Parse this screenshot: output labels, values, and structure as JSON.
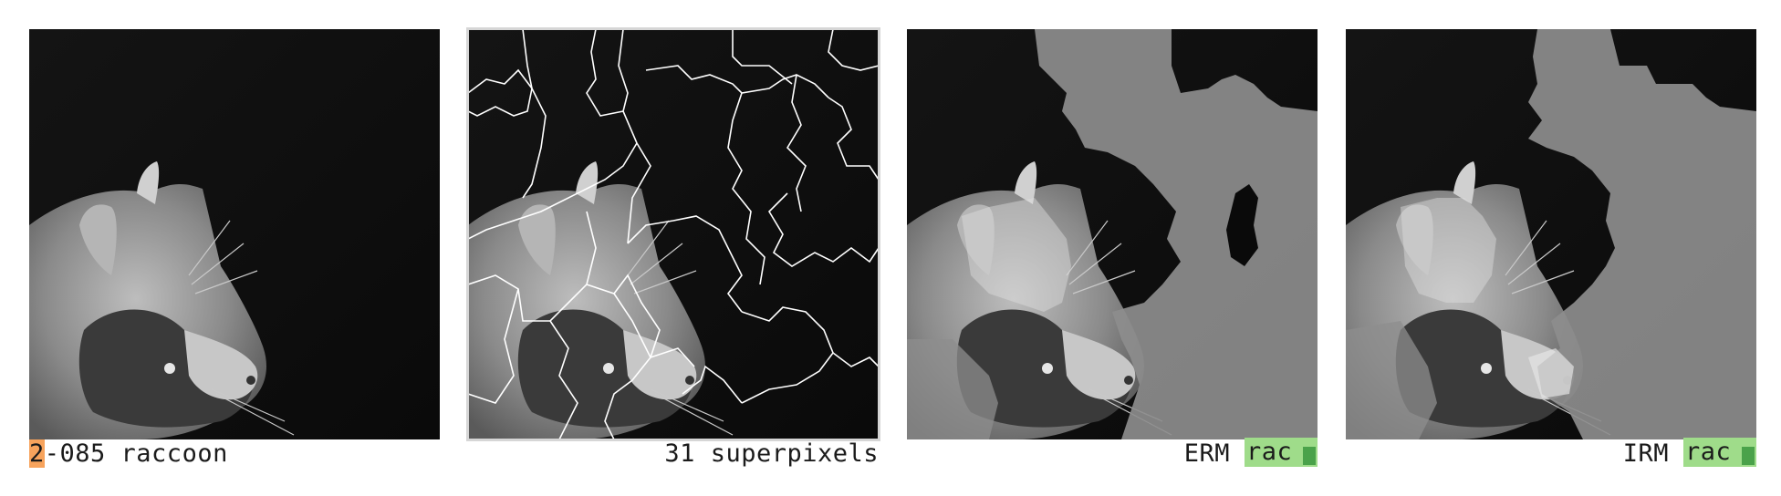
{
  "panels": [
    {
      "caption_prefix": "2",
      "caption_rest": "-085 raccoon"
    },
    {
      "caption": "31 superpixels"
    },
    {
      "method": "ERM",
      "prediction": "rac"
    },
    {
      "method": "IRM",
      "prediction": "rac"
    }
  ],
  "colors": {
    "highlight": "#f7a35c",
    "prediction_bg": "#9fdc8a",
    "prediction_bar": "#4aa24a",
    "mask_gray": "#8d8d8d",
    "boundary": "#ffffff"
  },
  "icons": [
    "raccoon-image",
    "superpixel-overlay",
    "explanation-mask"
  ]
}
